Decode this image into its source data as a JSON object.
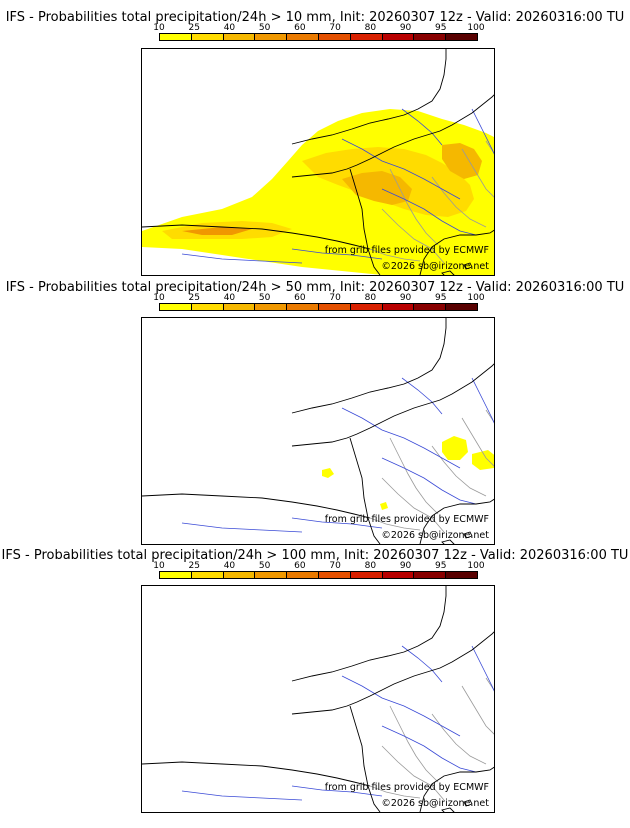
{
  "colorbar": {
    "ticks": [
      "10",
      "25",
      "40",
      "50",
      "60",
      "70",
      "80",
      "90",
      "95",
      "100"
    ],
    "colors": [
      "#ffff00",
      "#ffdc00",
      "#f5b800",
      "#f09800",
      "#ea7a00",
      "#e45000",
      "#d82000",
      "#b80000",
      "#880000",
      "#580000"
    ]
  },
  "panels": [
    {
      "title": "IFS - Probabilities total precipitation/24h > 10 mm, Init: 20260307 12z - Valid: 20260316:00 TU",
      "source_credit": "from grib files provided by ECMWF",
      "copyright": "©2026 sb@irizone.net",
      "level": "large"
    },
    {
      "title": "IFS - Probabilities total precipitation/24h > 50 mm, Init: 20260307 12z - Valid: 20260316:00 TU",
      "source_credit": "from grib files provided by ECMWF",
      "copyright": "©2026 sb@irizone.net",
      "level": "medium"
    },
    {
      "title": "IFS - Probabilities total precipitation/24h > 100 mm, Init: 20260307 12z - Valid: 20260316:00 TU",
      "source_credit": "from grib files provided by ECMWF",
      "copyright": "©2026 sb@irizone.net",
      "level": "small"
    }
  ]
}
